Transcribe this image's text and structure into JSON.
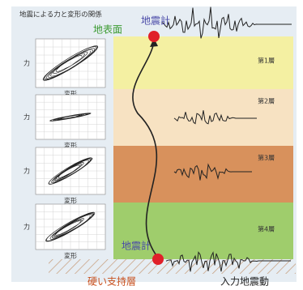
{
  "header": {
    "title": "地震による力と変形の関係"
  },
  "surface_label": "地表面",
  "top_sensor": "地震計",
  "layers": [
    "第1層",
    "第2層",
    "第3層",
    "第4層"
  ],
  "plots": [
    {
      "y_label": "力",
      "x_label": "変形"
    },
    {
      "y_label": "力",
      "x_label": "変形"
    },
    {
      "y_label": "力",
      "x_label": "変形"
    },
    {
      "y_label": "力",
      "x_label": "変形"
    }
  ],
  "bottom_sensor": "地震計",
  "support_layer": "硬い支持層",
  "input_motion": "入力地震動"
}
